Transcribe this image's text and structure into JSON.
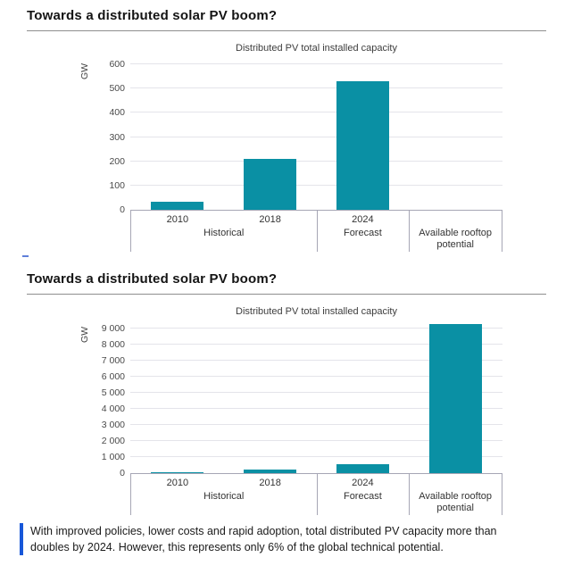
{
  "slides": [
    {
      "title": "Towards a distributed solar PV boom?"
    },
    {
      "title": "Towards a distributed solar PV boom?"
    }
  ],
  "chart_data": [
    {
      "type": "bar",
      "title": "Distributed PV total installed capacity",
      "ylabel": "GW",
      "categories": [
        "2010",
        "2018",
        "2024",
        "Available rooftop potential"
      ],
      "values": [
        35,
        210,
        530,
        null
      ],
      "x_year_labels": [
        "2010",
        "2018",
        "2024",
        ""
      ],
      "group_headers": [
        {
          "label": "Historical",
          "span": 2
        },
        {
          "label": "Forecast",
          "span": 1
        },
        {
          "label": "Available rooftop potential",
          "span": 1
        }
      ],
      "ylim": [
        0,
        630
      ],
      "yticks": [
        0,
        100,
        200,
        300,
        400,
        500,
        600
      ],
      "ytick_labels": [
        "0",
        "100",
        "200",
        "300",
        "400",
        "500",
        "600"
      ],
      "grid": true,
      "legend": false,
      "bar_color": "#0a90a4"
    },
    {
      "type": "bar",
      "title": "Distributed PV total installed capacity",
      "ylabel": "GW",
      "categories": [
        "2010",
        "2018",
        "2024",
        "Available rooftop potential"
      ],
      "values": [
        35,
        210,
        530,
        9300
      ],
      "x_year_labels": [
        "2010",
        "2018",
        "2024",
        ""
      ],
      "group_headers": [
        {
          "label": "Historical",
          "span": 2
        },
        {
          "label": "Forecast",
          "span": 1
        },
        {
          "label": "Available rooftop potential",
          "span": 1
        }
      ],
      "ylim": [
        0,
        9500
      ],
      "yticks": [
        0,
        1000,
        2000,
        3000,
        4000,
        5000,
        6000,
        7000,
        8000,
        9000
      ],
      "ytick_labels": [
        "0",
        "1 000",
        "2 000",
        "3 000",
        "4 000",
        "5 000",
        "6 000",
        "7 000",
        "8 000",
        "9 000"
      ],
      "grid": true,
      "legend": false,
      "bar_color": "#0a90a4"
    }
  ],
  "caption": {
    "text": "With improved policies, lower costs and rapid adoption, total distributed PV capacity more than doubles by 2024. However, this represents only 6% of the global technical potential.",
    "accent_color": "#1757d9"
  }
}
